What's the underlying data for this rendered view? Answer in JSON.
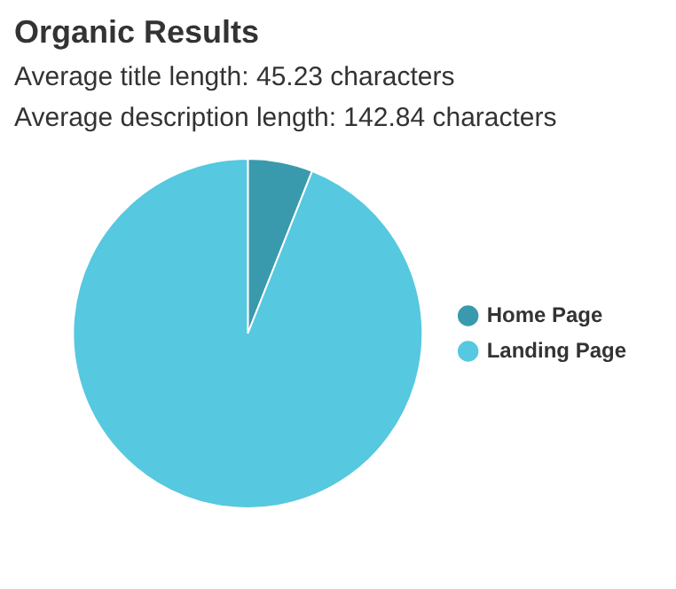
{
  "chart_data": {
    "type": "pie",
    "title": "Organic Results",
    "subtitle": "Average title length: 45.23 characters",
    "annotations": [
      "Average description length: 142.84 characters"
    ],
    "categories": [
      "Home Page",
      "Landing Page"
    ],
    "values": [
      6,
      94
    ],
    "colors": [
      "#3a9aad",
      "#56c8e0"
    ],
    "legend": "right"
  }
}
